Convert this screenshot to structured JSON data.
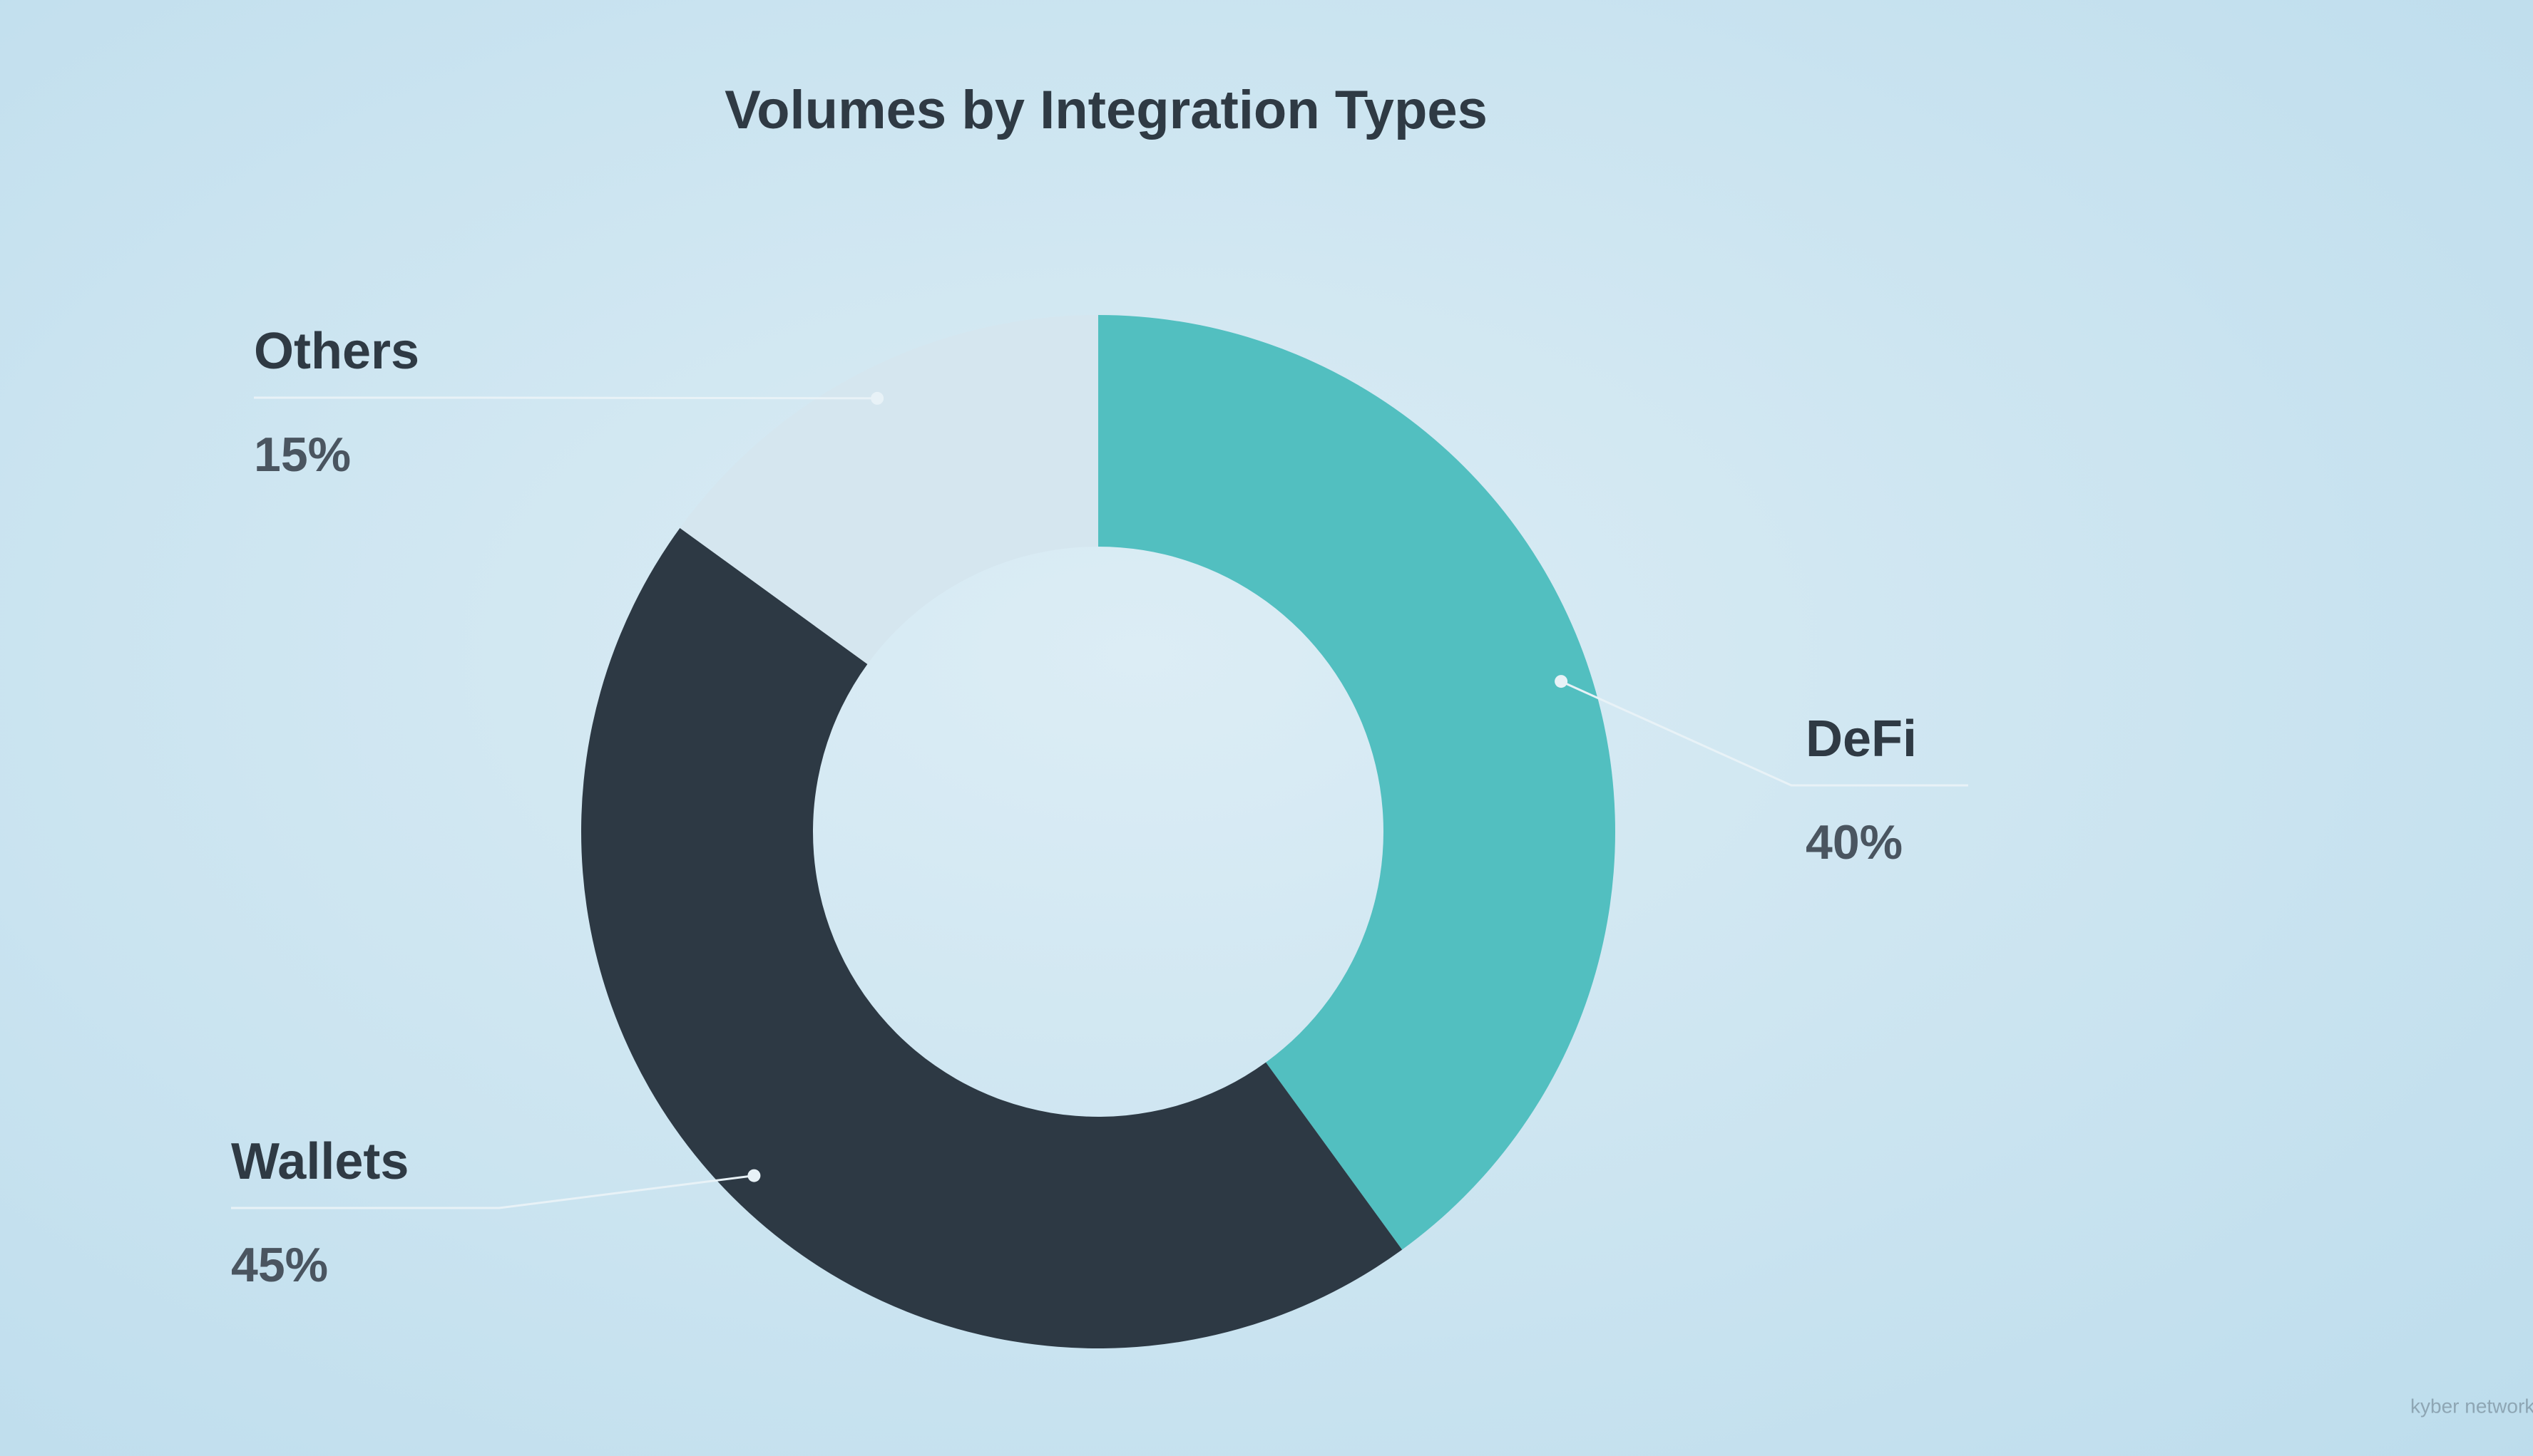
{
  "chart_data": {
    "type": "donut",
    "title": "Volumes by Integration Types",
    "categories": [
      "DeFi",
      "Wallets",
      "Others"
    ],
    "values": [
      40,
      45,
      15
    ],
    "value_labels": [
      "40%",
      "45%",
      "15%"
    ],
    "colors": [
      "#52bfc0",
      "#2d3944",
      "#d5e6ef"
    ]
  },
  "logo": "kyber network"
}
